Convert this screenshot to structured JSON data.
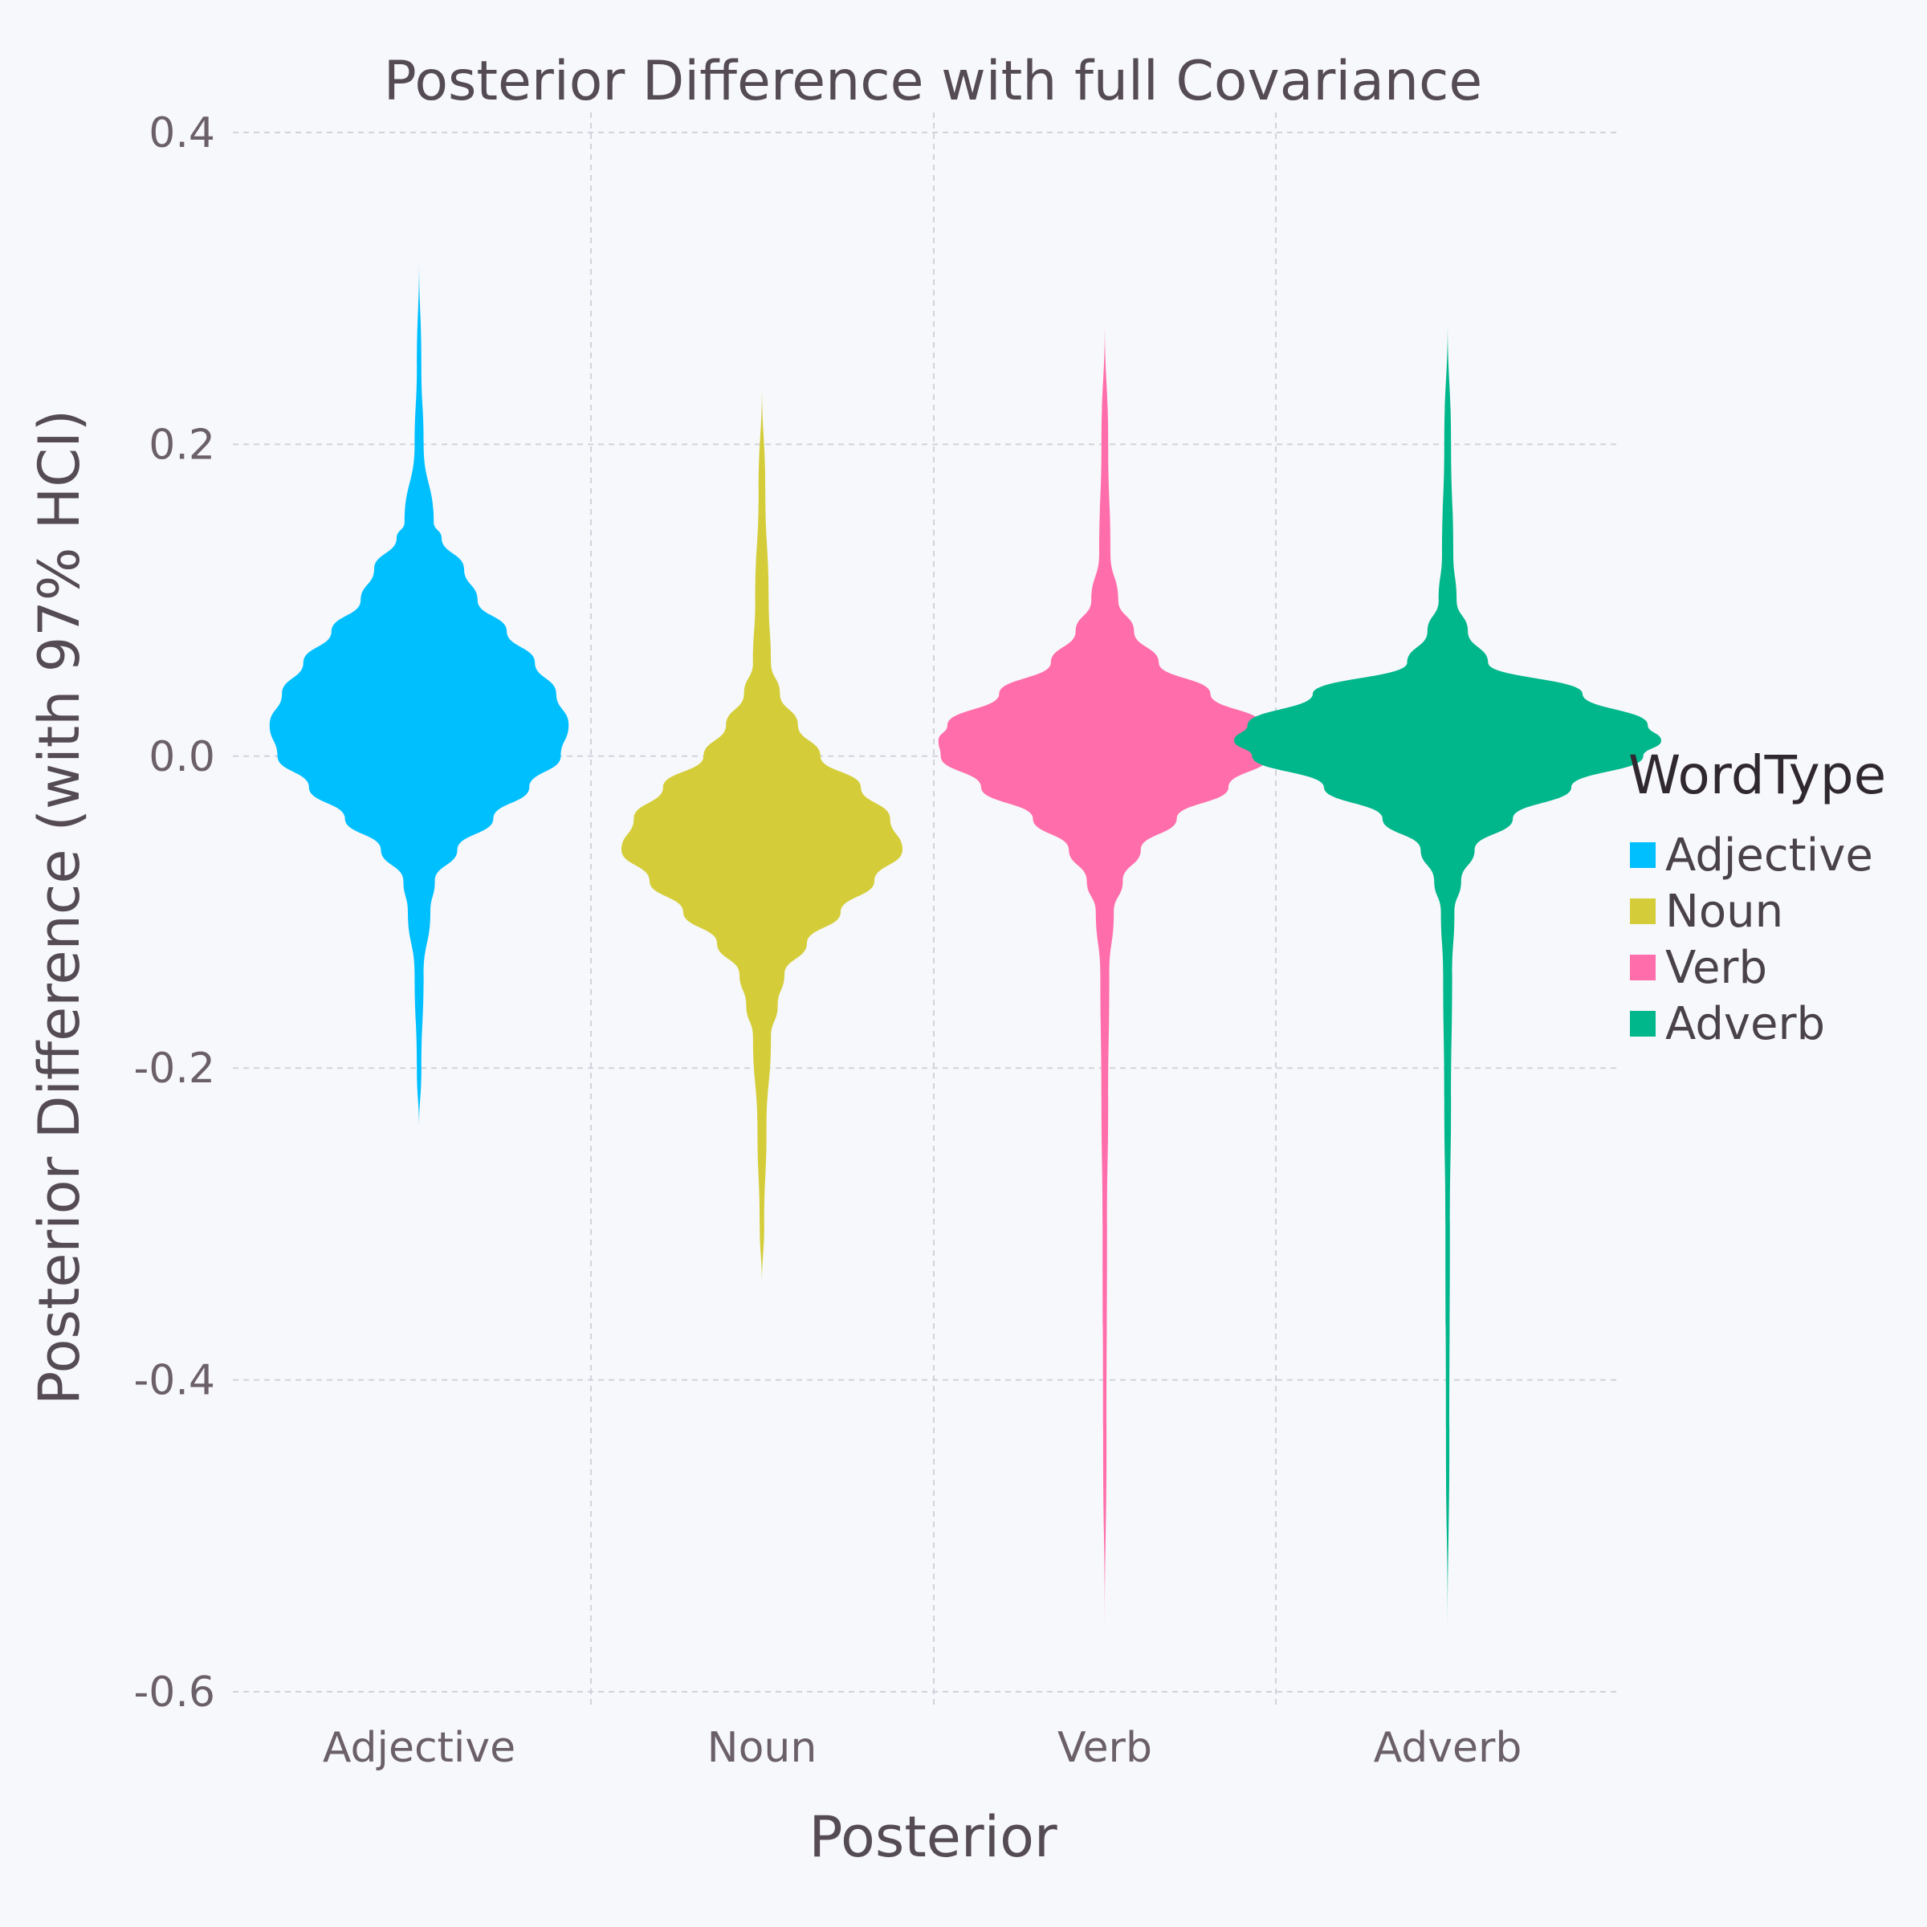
{
  "chart_data": {
    "type": "violin",
    "title": "Posterior Difference with full Covariance",
    "xlabel": "Posterior",
    "ylabel": "Posterior Difference (with 97% HCI)",
    "ylim": [
      -0.6,
      0.4
    ],
    "yticks": [
      "0.4",
      "0.2",
      "0.0",
      "-0.2",
      "-0.4",
      "-0.6"
    ],
    "grid": true,
    "legend_title": "WordType",
    "legend_position": "right",
    "categories": [
      "Adjective",
      "Noun",
      "Verb",
      "Adverb"
    ],
    "series": [
      {
        "name": "Adjective",
        "color": "#00bfff",
        "min": -0.24,
        "max": 0.32,
        "profile": [
          [
            0.32,
            0
          ],
          [
            0.25,
            0.002
          ],
          [
            0.2,
            0.004
          ],
          [
            0.15,
            0.013
          ],
          [
            0.14,
            0.02
          ],
          [
            0.12,
            0.04
          ],
          [
            0.1,
            0.052
          ],
          [
            0.08,
            0.078
          ],
          [
            0.06,
            0.103
          ],
          [
            0.04,
            0.122
          ],
          [
            0.02,
            0.133
          ],
          [
            0.0,
            0.126
          ],
          [
            -0.02,
            0.098
          ],
          [
            -0.04,
            0.066
          ],
          [
            -0.06,
            0.034
          ],
          [
            -0.08,
            0.014
          ],
          [
            -0.1,
            0.01
          ],
          [
            -0.14,
            0.004
          ],
          [
            -0.2,
            0.002
          ],
          [
            -0.24,
            0
          ]
        ]
      },
      {
        "name": "Noun",
        "color": "#d4cd39",
        "min": -0.34,
        "max": 0.24,
        "profile": [
          [
            0.24,
            0
          ],
          [
            0.17,
            0.003
          ],
          [
            0.1,
            0.006
          ],
          [
            0.06,
            0.008
          ],
          [
            0.04,
            0.016
          ],
          [
            0.02,
            0.032
          ],
          [
            0.0,
            0.052
          ],
          [
            -0.02,
            0.088
          ],
          [
            -0.04,
            0.114
          ],
          [
            -0.06,
            0.125
          ],
          [
            -0.08,
            0.1
          ],
          [
            -0.1,
            0.07
          ],
          [
            -0.12,
            0.04
          ],
          [
            -0.14,
            0.02
          ],
          [
            -0.16,
            0.014
          ],
          [
            -0.18,
            0.008
          ],
          [
            -0.24,
            0.004
          ],
          [
            -0.3,
            0.002
          ],
          [
            -0.34,
            0
          ]
        ]
      },
      {
        "name": "Verb",
        "color": "#ff6eaa",
        "min": -0.56,
        "max": 0.28,
        "profile": [
          [
            0.28,
            0
          ],
          [
            0.2,
            0.003
          ],
          [
            0.13,
            0.005
          ],
          [
            0.1,
            0.012
          ],
          [
            0.08,
            0.026
          ],
          [
            0.06,
            0.048
          ],
          [
            0.04,
            0.094
          ],
          [
            0.02,
            0.14
          ],
          [
            0.01,
            0.148
          ],
          [
            0.0,
            0.146
          ],
          [
            -0.02,
            0.11
          ],
          [
            -0.04,
            0.064
          ],
          [
            -0.06,
            0.032
          ],
          [
            -0.08,
            0.016
          ],
          [
            -0.1,
            0.008
          ],
          [
            -0.14,
            0.004
          ],
          [
            -0.22,
            0.003
          ],
          [
            -0.3,
            0.002
          ],
          [
            -0.44,
            0.0015
          ],
          [
            -0.56,
            0
          ]
        ]
      },
      {
        "name": "Adverb",
        "color": "#00b68b",
        "min": -0.56,
        "max": 0.28,
        "profile": [
          [
            0.28,
            0
          ],
          [
            0.2,
            0.003
          ],
          [
            0.13,
            0.005
          ],
          [
            0.1,
            0.008
          ],
          [
            0.08,
            0.018
          ],
          [
            0.06,
            0.036
          ],
          [
            0.04,
            0.12
          ],
          [
            0.02,
            0.178
          ],
          [
            0.01,
            0.19
          ],
          [
            0.0,
            0.174
          ],
          [
            -0.02,
            0.11
          ],
          [
            -0.04,
            0.058
          ],
          [
            -0.06,
            0.024
          ],
          [
            -0.08,
            0.012
          ],
          [
            -0.1,
            0.006
          ],
          [
            -0.14,
            0.004
          ],
          [
            -0.22,
            0.003
          ],
          [
            -0.3,
            0.002
          ],
          [
            -0.44,
            0.0015
          ],
          [
            -0.56,
            0
          ]
        ]
      }
    ]
  }
}
